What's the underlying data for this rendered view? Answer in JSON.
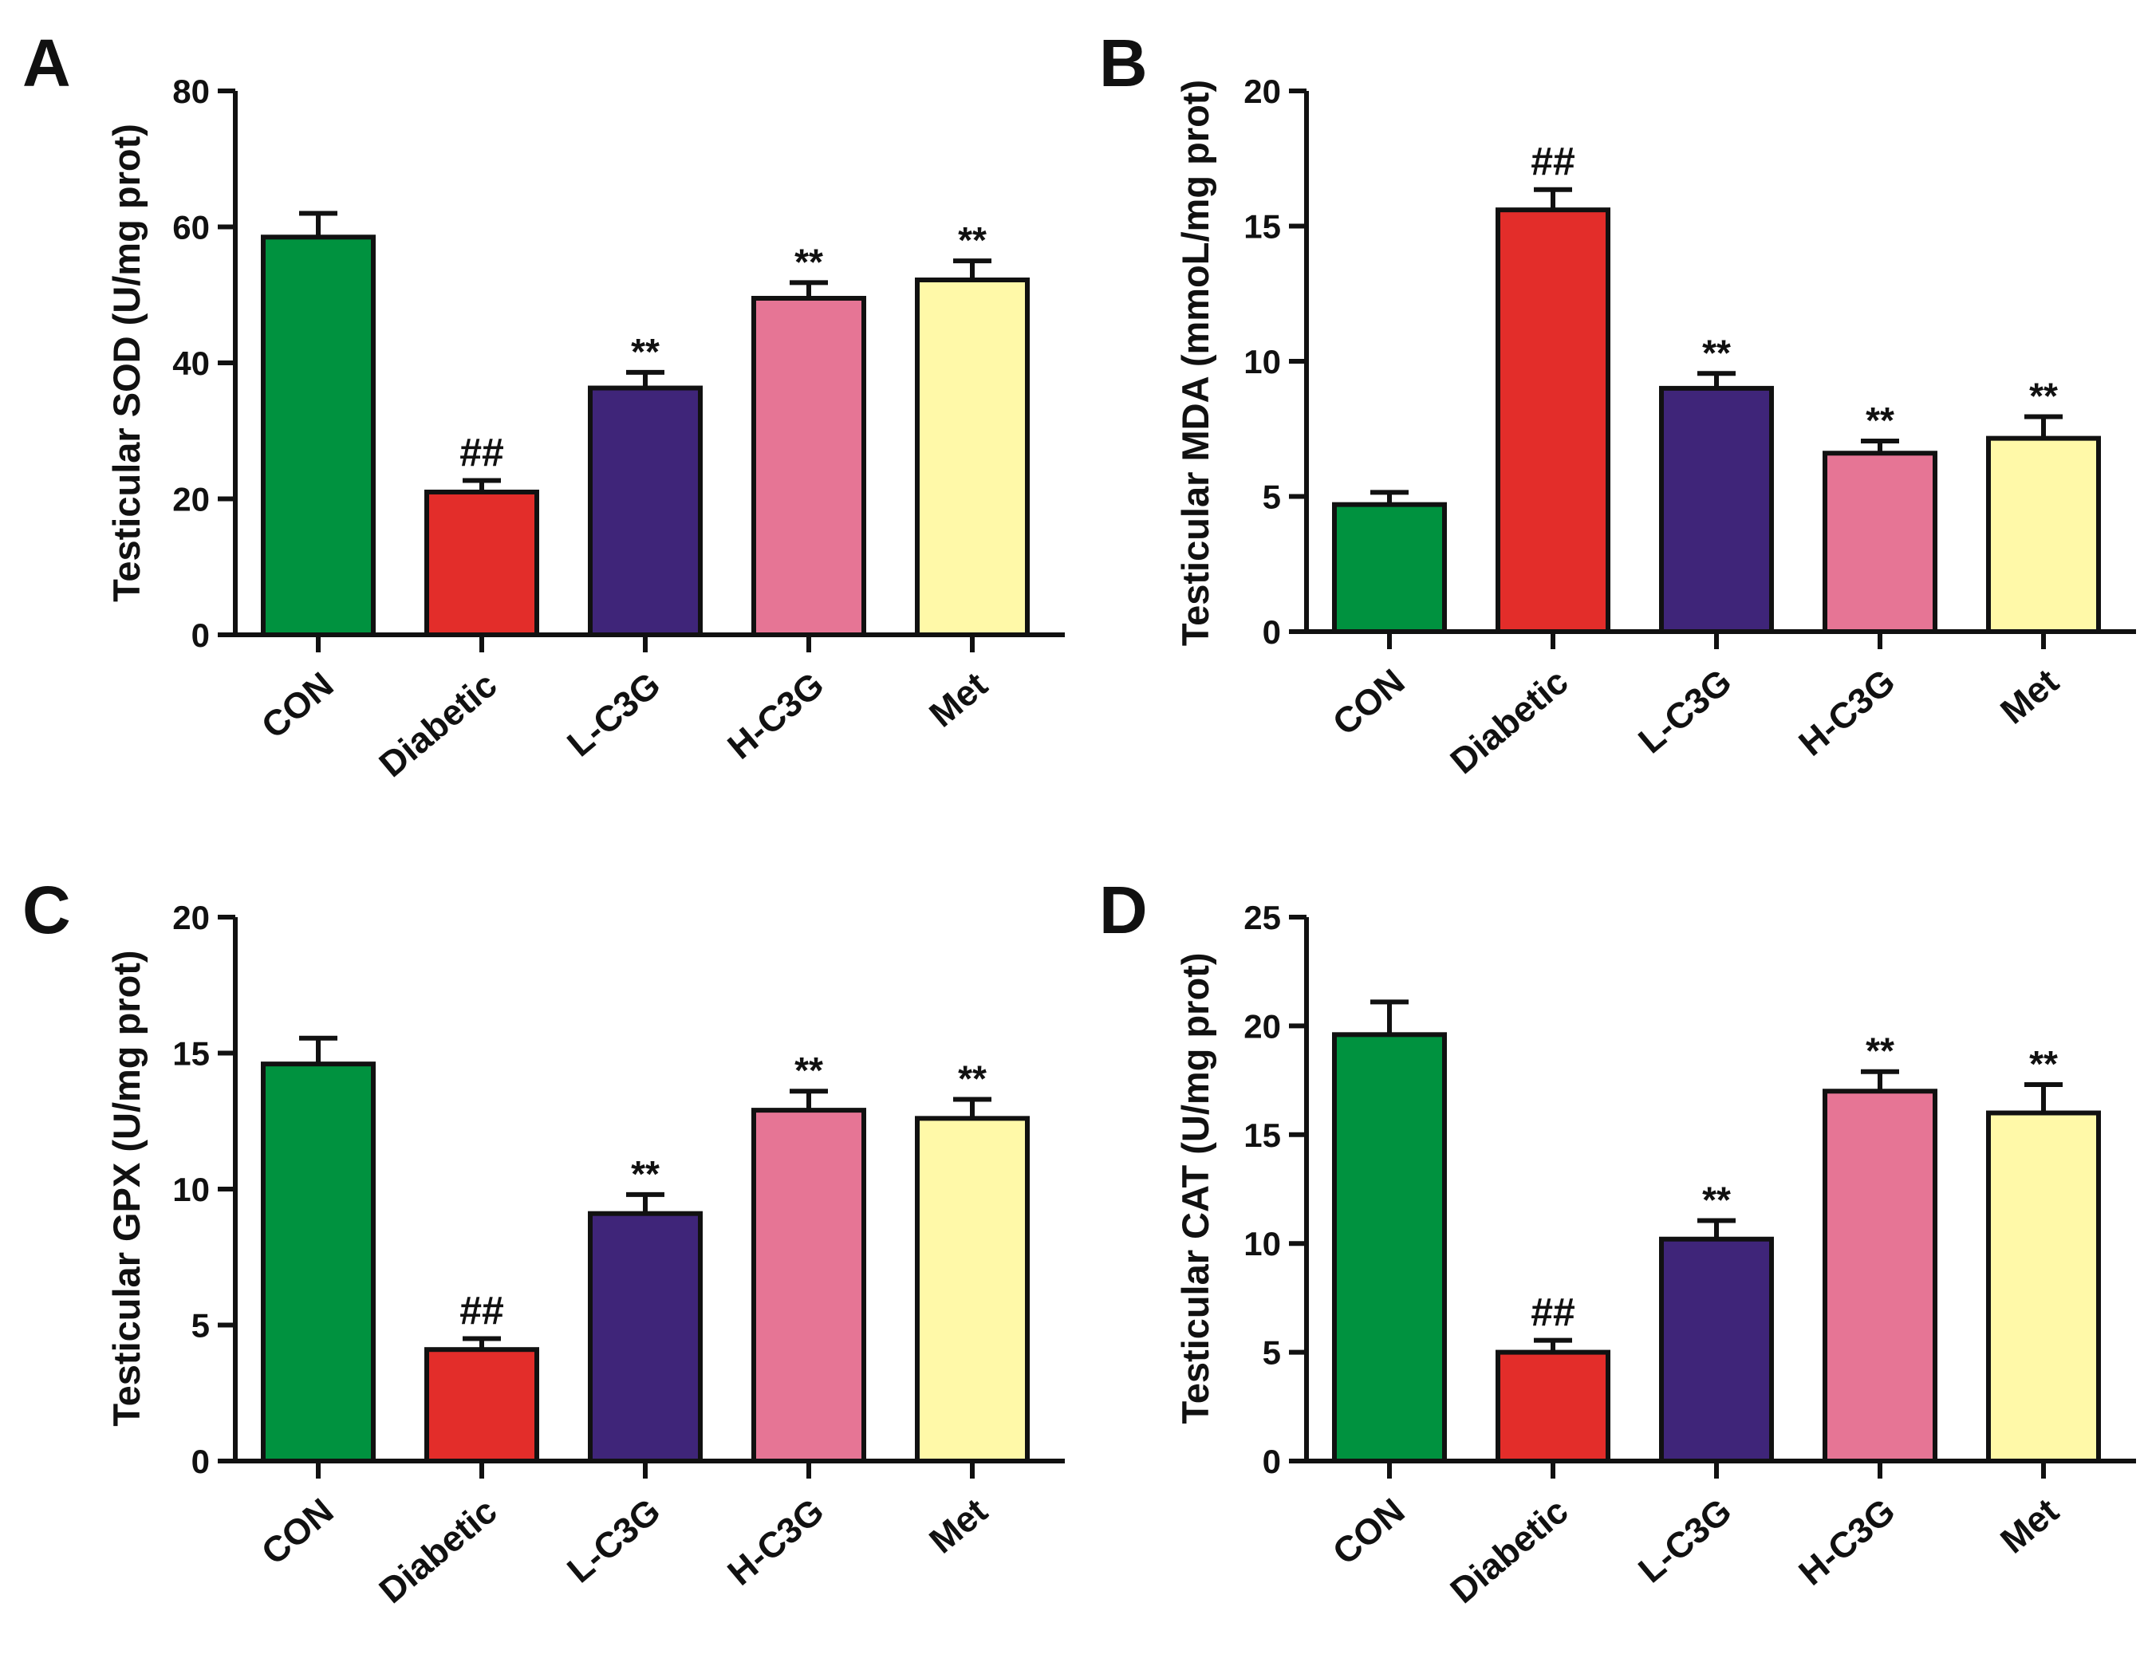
{
  "figure": {
    "categories": [
      "CON",
      "Diabetic",
      "L-C3G",
      "H-C3G",
      "Met"
    ],
    "colors": [
      "#00923f",
      "#e32d2a",
      "#3f2579",
      "#e67595",
      "#fff9a8"
    ]
  },
  "chart_data": [
    {
      "type": "bar",
      "panel_label": "A",
      "ylabel": "Testicular SOD (U/mg prot)",
      "categories": [
        "CON",
        "Diabetic",
        "L-C3G",
        "H-C3G",
        "Met"
      ],
      "values": [
        58.5,
        21,
        36.3,
        49.5,
        52.2
      ],
      "errors": [
        3.5,
        1.7,
        2.3,
        2.3,
        2.8
      ],
      "annotations": [
        "",
        "##",
        "**",
        "**",
        "**"
      ],
      "ylim": [
        0,
        80
      ],
      "yticks": [
        0,
        20,
        40,
        60,
        80
      ]
    },
    {
      "type": "bar",
      "panel_label": "B",
      "ylabel": "Testicular MDA (mmoL/mg prot)",
      "categories": [
        "CON",
        "Diabetic",
        "L-C3G",
        "H-C3G",
        "Met"
      ],
      "values": [
        4.7,
        15.6,
        9.0,
        6.6,
        7.15
      ],
      "errors": [
        0.45,
        0.75,
        0.55,
        0.45,
        0.8
      ],
      "annotations": [
        "",
        "##",
        "**",
        "**",
        "**"
      ],
      "ylim": [
        0,
        20
      ],
      "yticks": [
        0,
        5,
        10,
        15,
        20
      ]
    },
    {
      "type": "bar",
      "panel_label": "C",
      "ylabel": "Testicular GPX (U/mg prot)",
      "categories": [
        "CON",
        "Diabetic",
        "L-C3G",
        "H-C3G",
        "Met"
      ],
      "values": [
        14.6,
        4.1,
        9.1,
        12.9,
        12.6
      ],
      "errors": [
        0.95,
        0.4,
        0.7,
        0.7,
        0.7
      ],
      "annotations": [
        "",
        "##",
        "**",
        "**",
        "**"
      ],
      "ylim": [
        0,
        20
      ],
      "yticks": [
        0,
        5,
        10,
        15,
        20
      ]
    },
    {
      "type": "bar",
      "panel_label": "D",
      "ylabel": "Testicular CAT (U/mg prot)",
      "categories": [
        "CON",
        "Diabetic",
        "L-C3G",
        "H-C3G",
        "Met"
      ],
      "values": [
        19.6,
        5.0,
        10.2,
        17.0,
        16.0
      ],
      "errors": [
        1.5,
        0.55,
        0.85,
        0.9,
        1.3
      ],
      "annotations": [
        "",
        "##",
        "**",
        "**",
        "**"
      ],
      "ylim": [
        0,
        25
      ],
      "yticks": [
        0,
        5,
        10,
        15,
        20,
        25
      ]
    }
  ]
}
